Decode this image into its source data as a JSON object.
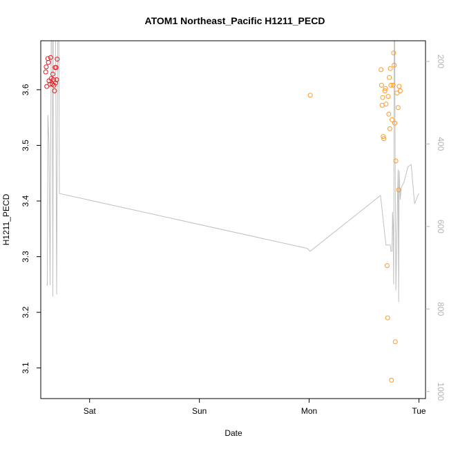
{
  "chart_data": {
    "type": "scatter",
    "title": "ATOM1 Northeast_Pacific H1211_PECD",
    "xlabel": "Date",
    "ylabel": "H1211_PECD",
    "x_unit": "days since Fri 00:00",
    "xlim": [
      0.555,
      4.06
    ],
    "ylim": [
      3.045,
      3.688
    ],
    "x_ticks": [
      {
        "value": 1,
        "label": "Sat"
      },
      {
        "value": 2,
        "label": "Sun"
      },
      {
        "value": 3,
        "label": "Mon"
      },
      {
        "value": 4,
        "label": "Tue"
      }
    ],
    "y_ticks": [
      {
        "value": 3.1,
        "label": "3.1"
      },
      {
        "value": 3.2,
        "label": "3.2"
      },
      {
        "value": 3.3,
        "label": "3.3"
      },
      {
        "value": 3.4,
        "label": "3.4"
      },
      {
        "value": 3.5,
        "label": "3.5"
      },
      {
        "value": 3.6,
        "label": "3.6"
      }
    ],
    "y2lim": [
      1017,
      150
    ],
    "y2_ticks": [
      {
        "value": 200,
        "label": "200"
      },
      {
        "value": 400,
        "label": "400"
      },
      {
        "value": 600,
        "label": "600"
      },
      {
        "value": 800,
        "label": "800"
      },
      {
        "value": 1000,
        "label": "1000"
      }
    ],
    "grid": false,
    "series": [
      {
        "color": "#e41a1c",
        "points": [
          [
            0.6,
            3.632
          ],
          [
            0.605,
            3.641
          ],
          [
            0.61,
            3.606
          ],
          [
            0.62,
            3.656
          ],
          [
            0.625,
            3.649
          ],
          [
            0.63,
            3.616
          ],
          [
            0.64,
            3.61
          ],
          [
            0.645,
            3.658
          ],
          [
            0.65,
            3.62
          ],
          [
            0.66,
            3.61
          ],
          [
            0.665,
            3.628
          ],
          [
            0.67,
            3.618
          ],
          [
            0.675,
            3.608
          ],
          [
            0.68,
            3.598
          ],
          [
            0.685,
            3.64
          ],
          [
            0.69,
            3.612
          ],
          [
            0.695,
            3.64
          ],
          [
            0.7,
            3.618
          ],
          [
            0.705,
            3.655
          ]
        ]
      },
      {
        "color": "#ff9922",
        "points": [
          [
            3.01,
            3.59
          ],
          [
            3.655,
            3.636
          ],
          [
            3.66,
            3.608
          ],
          [
            3.665,
            3.572
          ],
          [
            3.67,
            3.586
          ],
          [
            3.675,
            3.516
          ],
          [
            3.68,
            3.512
          ],
          [
            3.69,
            3.598
          ],
          [
            3.695,
            3.602
          ],
          [
            3.7,
            3.574
          ],
          [
            3.71,
            3.284
          ],
          [
            3.715,
            3.19
          ],
          [
            3.72,
            3.588
          ],
          [
            3.725,
            3.556
          ],
          [
            3.73,
            3.622
          ],
          [
            3.735,
            3.53
          ],
          [
            3.74,
            3.638
          ],
          [
            3.745,
            3.608
          ],
          [
            3.75,
            3.078
          ],
          [
            3.755,
            3.546
          ],
          [
            3.765,
            3.608
          ],
          [
            3.77,
            3.666
          ],
          [
            3.775,
            3.644
          ],
          [
            3.78,
            3.54
          ],
          [
            3.785,
            3.147
          ],
          [
            3.79,
            3.472
          ],
          [
            3.8,
            3.594
          ],
          [
            3.81,
            3.568
          ],
          [
            3.815,
            3.42
          ],
          [
            3.82,
            3.606
          ],
          [
            3.83,
            3.598
          ]
        ]
      }
    ],
    "secondary_line": {
      "color": "#c0c0c0",
      "axis": "right",
      "points": [
        [
          0.61,
          740
        ],
        [
          0.615,
          742
        ],
        [
          0.62,
          330
        ],
        [
          0.63,
          400
        ],
        [
          0.64,
          742
        ],
        [
          0.65,
          150
        ],
        [
          0.66,
          150
        ],
        [
          0.665,
          770
        ],
        [
          0.67,
          150
        ],
        [
          0.69,
          150
        ],
        [
          0.7,
          765
        ],
        [
          0.71,
          150
        ],
        [
          0.72,
          150
        ],
        [
          0.725,
          520
        ],
        [
          2.98,
          653
        ],
        [
          3.01,
          660
        ],
        [
          3.65,
          525
        ],
        [
          3.7,
          645
        ],
        [
          3.74,
          645
        ],
        [
          3.745,
          660
        ],
        [
          3.755,
          660
        ],
        [
          3.76,
          565
        ],
        [
          3.765,
          598
        ],
        [
          3.77,
          740
        ],
        [
          3.775,
          150
        ],
        [
          3.78,
          150
        ],
        [
          3.785,
          525
        ],
        [
          3.79,
          755
        ],
        [
          3.8,
          600
        ],
        [
          3.81,
          462
        ],
        [
          3.815,
          783
        ],
        [
          3.82,
          465
        ],
        [
          3.83,
          535
        ],
        [
          3.84,
          505
        ],
        [
          3.865,
          492
        ],
        [
          3.9,
          455
        ],
        [
          3.93,
          450
        ],
        [
          3.96,
          545
        ],
        [
          3.99,
          525
        ],
        [
          4.0,
          520
        ]
      ]
    }
  }
}
